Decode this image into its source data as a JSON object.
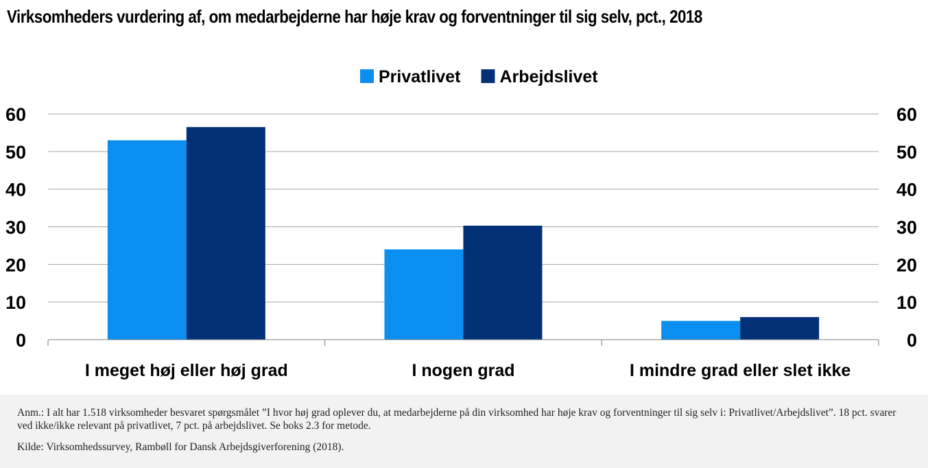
{
  "title": "Virksomheders vurdering af, om medarbejderne har høje krav og forventninger til sig selv, pct., 2018",
  "chart_data": {
    "type": "bar",
    "title": "Virksomheders vurdering af, om medarbejderne har høje krav og forventninger til sig selv, pct., 2018",
    "categories": [
      "I meget høj eller høj grad",
      "I nogen grad",
      "I mindre grad eller slet ikke"
    ],
    "series": [
      {
        "name": "Privatlivet",
        "values": [
          53,
          24,
          5
        ],
        "color": "#0a8ff0"
      },
      {
        "name": "Arbejdslivet",
        "values": [
          56.5,
          30.3,
          6
        ],
        "color": "#023076"
      }
    ],
    "ylim": [
      0,
      60
    ],
    "yticks": [
      "0",
      "10",
      "20",
      "30",
      "40",
      "50",
      "60"
    ],
    "secondary_axis": true,
    "grid": true,
    "legend_position": "top-center",
    "xlabel": "",
    "ylabel": ""
  },
  "notes": {
    "annotation": "Anm.: I alt har 1.518 virksomheder besvaret spørgsmålet ”I hvor høj grad oplever du, at medarbejderne på din virksomhed har høje krav og forventninger til sig selv i: Privatlivet/Arbejdslivet”. 18 pct. svarer ved ikke/ikke relevant på privatlivet, 7 pct. på arbejdslivet. Se boks 2.3 for metode.",
    "source": "Kilde: Virksomhedssurvey, Rambøll for Dansk Arbejdsgiverforening (2018)."
  }
}
